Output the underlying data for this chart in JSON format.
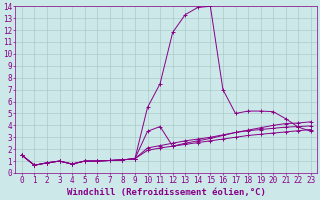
{
  "background_color": "#cce8e8",
  "grid_color": "#aacccc",
  "line_color": "#880088",
  "xlabel": "Windchill (Refroidissement éolien,°C)",
  "xlim": [
    -0.5,
    23.5
  ],
  "ylim": [
    0,
    14
  ],
  "xticks": [
    0,
    1,
    2,
    3,
    4,
    5,
    6,
    7,
    8,
    9,
    10,
    11,
    12,
    13,
    14,
    15,
    16,
    17,
    18,
    19,
    20,
    21,
    22,
    23
  ],
  "yticks": [
    0,
    1,
    2,
    3,
    4,
    5,
    6,
    7,
    8,
    9,
    10,
    11,
    12,
    13,
    14
  ],
  "series": [
    {
      "x": [
        0,
        1,
        2,
        3,
        4,
        5,
        6,
        7,
        8,
        9,
        10,
        11,
        12,
        13,
        14,
        15,
        16,
        17,
        18,
        19,
        20,
        21,
        22,
        23
      ],
      "y": [
        1.5,
        0.65,
        0.85,
        1.0,
        0.75,
        1.0,
        1.0,
        1.05,
        1.1,
        1.2,
        5.5,
        7.5,
        11.8,
        13.3,
        13.9,
        14.0,
        7.0,
        5.0,
        5.2,
        5.2,
        5.15,
        4.55,
        3.85,
        3.5
      ]
    },
    {
      "x": [
        0,
        1,
        2,
        3,
        4,
        5,
        6,
        7,
        8,
        9,
        10,
        11,
        12,
        13,
        14,
        15,
        16,
        17,
        18,
        19,
        20,
        21,
        22,
        23
      ],
      "y": [
        1.5,
        0.65,
        0.85,
        1.0,
        0.75,
        1.0,
        1.0,
        1.05,
        1.1,
        1.2,
        3.5,
        3.9,
        2.25,
        2.5,
        2.7,
        2.9,
        3.15,
        3.4,
        3.6,
        3.8,
        4.0,
        4.15,
        4.2,
        4.3
      ]
    },
    {
      "x": [
        0,
        1,
        2,
        3,
        4,
        5,
        6,
        7,
        8,
        9,
        10,
        11,
        12,
        13,
        14,
        15,
        16,
        17,
        18,
        19,
        20,
        21,
        22,
        23
      ],
      "y": [
        1.5,
        0.65,
        0.85,
        1.0,
        0.75,
        1.0,
        1.0,
        1.05,
        1.1,
        1.2,
        2.1,
        2.3,
        2.5,
        2.7,
        2.85,
        3.0,
        3.2,
        3.4,
        3.55,
        3.65,
        3.75,
        3.85,
        3.9,
        3.95
      ]
    },
    {
      "x": [
        0,
        1,
        2,
        3,
        4,
        5,
        6,
        7,
        8,
        9,
        10,
        11,
        12,
        13,
        14,
        15,
        16,
        17,
        18,
        19,
        20,
        21,
        22,
        23
      ],
      "y": [
        1.5,
        0.65,
        0.85,
        1.0,
        0.75,
        1.0,
        1.0,
        1.05,
        1.1,
        1.2,
        1.9,
        2.1,
        2.25,
        2.4,
        2.55,
        2.7,
        2.85,
        3.0,
        3.15,
        3.25,
        3.35,
        3.45,
        3.55,
        3.65
      ]
    }
  ],
  "font_family": "monospace",
  "tick_fontsize": 5.5,
  "xlabel_fontsize": 6.5
}
